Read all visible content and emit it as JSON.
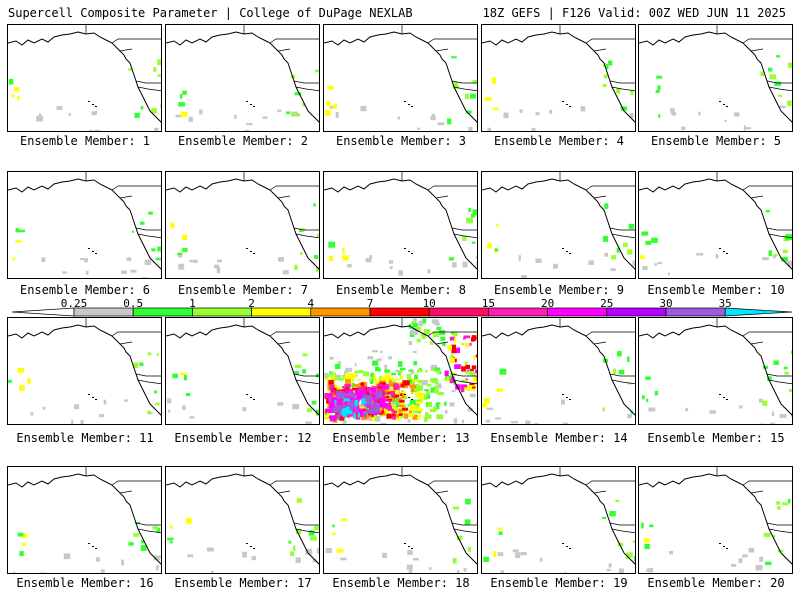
{
  "header": {
    "left": "Supercell Composite Parameter | College of DuPage NEXLAB",
    "right": "18Z GEFS | F126 Valid: 00Z WED JUN 11 2025"
  },
  "colorbar": {
    "ticks": [
      "0.25",
      "0.5",
      "1",
      "2",
      "4",
      "7",
      "10",
      "15",
      "20",
      "25",
      "30",
      "35"
    ],
    "colors": [
      "#c8c8c8",
      "#32ff32",
      "#96ff32",
      "#ffff00",
      "#ff9600",
      "#ff0000",
      "#ff0a64",
      "#ff1eb4",
      "#ff00ff",
      "#b400ff",
      "#a05adc",
      "#00e6ff"
    ]
  },
  "panels": [
    {
      "label": "Ensemble Member: 1",
      "intensity": "low"
    },
    {
      "label": "Ensemble Member: 2",
      "intensity": "low"
    },
    {
      "label": "Ensemble Member: 3",
      "intensity": "low"
    },
    {
      "label": "Ensemble Member: 4",
      "intensity": "low"
    },
    {
      "label": "Ensemble Member: 5",
      "intensity": "low"
    },
    {
      "label": "Ensemble Member: 6",
      "intensity": "low"
    },
    {
      "label": "Ensemble Member: 7",
      "intensity": "low"
    },
    {
      "label": "Ensemble Member: 8",
      "intensity": "low"
    },
    {
      "label": "Ensemble Member: 9",
      "intensity": "low"
    },
    {
      "label": "Ensemble Member: 10",
      "intensity": "low"
    },
    {
      "label": "Ensemble Member: 11",
      "intensity": "low"
    },
    {
      "label": "Ensemble Member: 12",
      "intensity": "low"
    },
    {
      "label": "Ensemble Member: 13",
      "intensity": "high"
    },
    {
      "label": "Ensemble Member: 14",
      "intensity": "low"
    },
    {
      "label": "Ensemble Member: 15",
      "intensity": "low"
    },
    {
      "label": "Ensemble Member: 16",
      "intensity": "low"
    },
    {
      "label": "Ensemble Member: 17",
      "intensity": "low"
    },
    {
      "label": "Ensemble Member: 18",
      "intensity": "low"
    },
    {
      "label": "Ensemble Member: 19",
      "intensity": "low"
    },
    {
      "label": "Ensemble Member: 20",
      "intensity": "low"
    }
  ]
}
